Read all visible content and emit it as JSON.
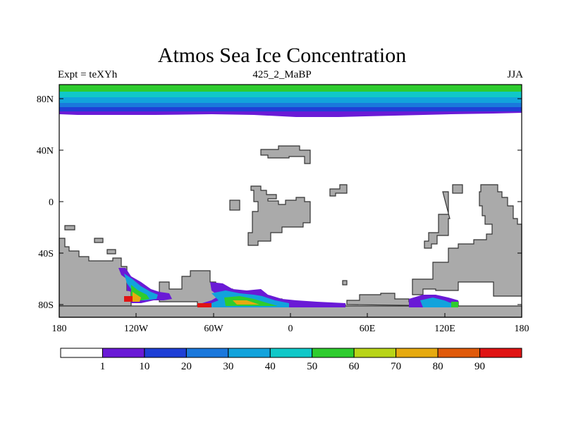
{
  "title": "Atmos Sea Ice Concentration",
  "subtitle_left": "Expt = teXYh",
  "subtitle_center": "425_2_MaBP",
  "subtitle_right": "JJA",
  "lat_labels": [
    "80N",
    "40N",
    "0",
    "40S",
    "80S"
  ],
  "lon_labels": [
    "180",
    "120W",
    "60W",
    "0",
    "60E",
    "120E",
    "180"
  ],
  "colorbar": {
    "labels": [
      "1",
      "10",
      "20",
      "30",
      "40",
      "50",
      "60",
      "70",
      "80",
      "90"
    ],
    "colors": [
      "#ffffff",
      "#6a1ad6",
      "#1e3fd6",
      "#1a78dc",
      "#12a3dc",
      "#10c8c8",
      "#2ecc2e",
      "#b8d418",
      "#e6aa10",
      "#e05a0a",
      "#e01414"
    ]
  },
  "land_color": "#aaaaaa"
}
